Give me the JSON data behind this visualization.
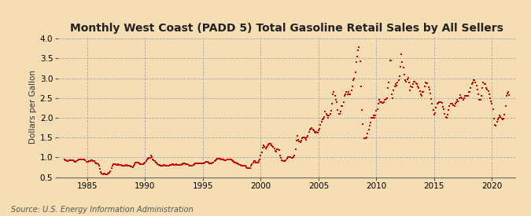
{
  "title": "Monthly West Coast (PADD 5) Total Gasoline Retail Sales by All Sellers",
  "ylabel": "Dollars per Gallon",
  "source_text": "Source: U.S. Energy Information Administration",
  "background_color": "#f5deb3",
  "plot_background_color": "#f5deb3",
  "marker_color": "#cc0000",
  "marker": "s",
  "marker_size": 2.0,
  "xlim": [
    1982.5,
    2022
  ],
  "ylim": [
    0.5,
    4.05
  ],
  "xticks": [
    1985,
    1990,
    1995,
    2000,
    2005,
    2010,
    2015,
    2020
  ],
  "yticks": [
    0.5,
    1.0,
    1.5,
    2.0,
    2.5,
    3.0,
    3.5,
    4.0
  ],
  "grid_color": "#aaaaaa",
  "grid_style": "--",
  "title_fontsize": 10,
  "label_fontsize": 7.5,
  "tick_fontsize": 7.5,
  "source_fontsize": 7,
  "data": [
    [
      1983.0,
      0.94
    ],
    [
      1983.08,
      0.93
    ],
    [
      1983.17,
      0.92
    ],
    [
      1983.25,
      0.91
    ],
    [
      1983.33,
      0.91
    ],
    [
      1983.42,
      0.92
    ],
    [
      1983.5,
      0.93
    ],
    [
      1983.58,
      0.93
    ],
    [
      1983.67,
      0.93
    ],
    [
      1983.75,
      0.92
    ],
    [
      1983.83,
      0.9
    ],
    [
      1983.92,
      0.89
    ],
    [
      1984.0,
      0.89
    ],
    [
      1984.08,
      0.91
    ],
    [
      1984.17,
      0.93
    ],
    [
      1984.25,
      0.94
    ],
    [
      1984.33,
      0.95
    ],
    [
      1984.42,
      0.95
    ],
    [
      1984.5,
      0.95
    ],
    [
      1984.58,
      0.95
    ],
    [
      1984.67,
      0.95
    ],
    [
      1984.75,
      0.94
    ],
    [
      1984.83,
      0.92
    ],
    [
      1984.92,
      0.89
    ],
    [
      1985.0,
      0.88
    ],
    [
      1985.08,
      0.89
    ],
    [
      1985.17,
      0.9
    ],
    [
      1985.25,
      0.91
    ],
    [
      1985.33,
      0.92
    ],
    [
      1985.42,
      0.92
    ],
    [
      1985.5,
      0.91
    ],
    [
      1985.58,
      0.9
    ],
    [
      1985.67,
      0.87
    ],
    [
      1985.75,
      0.85
    ],
    [
      1985.83,
      0.84
    ],
    [
      1985.92,
      0.83
    ],
    [
      1986.0,
      0.79
    ],
    [
      1986.08,
      0.71
    ],
    [
      1986.17,
      0.62
    ],
    [
      1986.25,
      0.59
    ],
    [
      1986.33,
      0.57
    ],
    [
      1986.42,
      0.58
    ],
    [
      1986.5,
      0.59
    ],
    [
      1986.58,
      0.57
    ],
    [
      1986.67,
      0.57
    ],
    [
      1986.75,
      0.58
    ],
    [
      1986.83,
      0.6
    ],
    [
      1986.92,
      0.61
    ],
    [
      1987.0,
      0.65
    ],
    [
      1987.08,
      0.72
    ],
    [
      1987.17,
      0.78
    ],
    [
      1987.25,
      0.82
    ],
    [
      1987.33,
      0.83
    ],
    [
      1987.42,
      0.82
    ],
    [
      1987.5,
      0.81
    ],
    [
      1987.58,
      0.81
    ],
    [
      1987.67,
      0.82
    ],
    [
      1987.75,
      0.81
    ],
    [
      1987.83,
      0.81
    ],
    [
      1987.92,
      0.81
    ],
    [
      1988.0,
      0.79
    ],
    [
      1988.08,
      0.78
    ],
    [
      1988.17,
      0.78
    ],
    [
      1988.25,
      0.79
    ],
    [
      1988.33,
      0.8
    ],
    [
      1988.42,
      0.8
    ],
    [
      1988.5,
      0.79
    ],
    [
      1988.58,
      0.79
    ],
    [
      1988.67,
      0.78
    ],
    [
      1988.75,
      0.77
    ],
    [
      1988.83,
      0.76
    ],
    [
      1988.92,
      0.75
    ],
    [
      1989.0,
      0.78
    ],
    [
      1989.08,
      0.82
    ],
    [
      1989.17,
      0.87
    ],
    [
      1989.25,
      0.87
    ],
    [
      1989.33,
      0.86
    ],
    [
      1989.42,
      0.86
    ],
    [
      1989.5,
      0.85
    ],
    [
      1989.58,
      0.83
    ],
    [
      1989.67,
      0.83
    ],
    [
      1989.75,
      0.82
    ],
    [
      1989.83,
      0.83
    ],
    [
      1989.92,
      0.84
    ],
    [
      1990.0,
      0.87
    ],
    [
      1990.08,
      0.9
    ],
    [
      1990.17,
      0.94
    ],
    [
      1990.25,
      0.96
    ],
    [
      1990.33,
      0.98
    ],
    [
      1990.42,
      0.99
    ],
    [
      1990.5,
      1.04
    ],
    [
      1990.58,
      1.0
    ],
    [
      1990.67,
      0.95
    ],
    [
      1990.75,
      0.93
    ],
    [
      1990.83,
      0.91
    ],
    [
      1990.92,
      0.87
    ],
    [
      1991.0,
      0.86
    ],
    [
      1991.08,
      0.83
    ],
    [
      1991.17,
      0.81
    ],
    [
      1991.25,
      0.8
    ],
    [
      1991.33,
      0.79
    ],
    [
      1991.42,
      0.79
    ],
    [
      1991.5,
      0.79
    ],
    [
      1991.58,
      0.8
    ],
    [
      1991.67,
      0.8
    ],
    [
      1991.75,
      0.79
    ],
    [
      1991.83,
      0.79
    ],
    [
      1991.92,
      0.78
    ],
    [
      1992.0,
      0.79
    ],
    [
      1992.08,
      0.79
    ],
    [
      1992.17,
      0.8
    ],
    [
      1992.25,
      0.81
    ],
    [
      1992.33,
      0.82
    ],
    [
      1992.42,
      0.82
    ],
    [
      1992.5,
      0.81
    ],
    [
      1992.58,
      0.81
    ],
    [
      1992.67,
      0.82
    ],
    [
      1992.75,
      0.81
    ],
    [
      1992.83,
      0.81
    ],
    [
      1992.92,
      0.81
    ],
    [
      1993.0,
      0.81
    ],
    [
      1993.08,
      0.81
    ],
    [
      1993.17,
      0.82
    ],
    [
      1993.25,
      0.83
    ],
    [
      1993.33,
      0.84
    ],
    [
      1993.42,
      0.84
    ],
    [
      1993.5,
      0.83
    ],
    [
      1993.58,
      0.82
    ],
    [
      1993.67,
      0.82
    ],
    [
      1993.75,
      0.8
    ],
    [
      1993.83,
      0.79
    ],
    [
      1993.92,
      0.78
    ],
    [
      1994.0,
      0.78
    ],
    [
      1994.08,
      0.79
    ],
    [
      1994.17,
      0.8
    ],
    [
      1994.25,
      0.82
    ],
    [
      1994.33,
      0.84
    ],
    [
      1994.42,
      0.84
    ],
    [
      1994.5,
      0.85
    ],
    [
      1994.58,
      0.84
    ],
    [
      1994.67,
      0.84
    ],
    [
      1994.75,
      0.84
    ],
    [
      1994.83,
      0.84
    ],
    [
      1994.92,
      0.84
    ],
    [
      1995.0,
      0.84
    ],
    [
      1995.08,
      0.84
    ],
    [
      1995.17,
      0.87
    ],
    [
      1995.25,
      0.88
    ],
    [
      1995.33,
      0.88
    ],
    [
      1995.42,
      0.88
    ],
    [
      1995.5,
      0.86
    ],
    [
      1995.58,
      0.85
    ],
    [
      1995.67,
      0.85
    ],
    [
      1995.75,
      0.85
    ],
    [
      1995.83,
      0.86
    ],
    [
      1995.92,
      0.86
    ],
    [
      1996.0,
      0.9
    ],
    [
      1996.08,
      0.93
    ],
    [
      1996.17,
      0.95
    ],
    [
      1996.25,
      0.97
    ],
    [
      1996.33,
      0.97
    ],
    [
      1996.42,
      0.97
    ],
    [
      1996.5,
      0.97
    ],
    [
      1996.58,
      0.95
    ],
    [
      1996.67,
      0.94
    ],
    [
      1996.75,
      0.94
    ],
    [
      1996.83,
      0.93
    ],
    [
      1996.92,
      0.92
    ],
    [
      1997.0,
      0.92
    ],
    [
      1997.08,
      0.94
    ],
    [
      1997.17,
      0.95
    ],
    [
      1997.25,
      0.95
    ],
    [
      1997.33,
      0.95
    ],
    [
      1997.42,
      0.95
    ],
    [
      1997.5,
      0.92
    ],
    [
      1997.58,
      0.9
    ],
    [
      1997.67,
      0.89
    ],
    [
      1997.75,
      0.87
    ],
    [
      1997.83,
      0.86
    ],
    [
      1997.92,
      0.85
    ],
    [
      1998.0,
      0.84
    ],
    [
      1998.08,
      0.82
    ],
    [
      1998.17,
      0.8
    ],
    [
      1998.25,
      0.8
    ],
    [
      1998.33,
      0.79
    ],
    [
      1998.42,
      0.79
    ],
    [
      1998.5,
      0.79
    ],
    [
      1998.58,
      0.78
    ],
    [
      1998.67,
      0.78
    ],
    [
      1998.75,
      0.75
    ],
    [
      1998.83,
      0.73
    ],
    [
      1998.92,
      0.72
    ],
    [
      1999.0,
      0.73
    ],
    [
      1999.08,
      0.73
    ],
    [
      1999.17,
      0.78
    ],
    [
      1999.25,
      0.82
    ],
    [
      1999.33,
      0.87
    ],
    [
      1999.42,
      0.9
    ],
    [
      1999.5,
      0.9
    ],
    [
      1999.58,
      0.87
    ],
    [
      1999.67,
      0.87
    ],
    [
      1999.75,
      0.87
    ],
    [
      1999.83,
      0.9
    ],
    [
      1999.92,
      0.95
    ],
    [
      2000.0,
      1.05
    ],
    [
      2000.08,
      1.12
    ],
    [
      2000.17,
      1.25
    ],
    [
      2000.25,
      1.3
    ],
    [
      2000.33,
      1.27
    ],
    [
      2000.42,
      1.22
    ],
    [
      2000.5,
      1.27
    ],
    [
      2000.58,
      1.28
    ],
    [
      2000.67,
      1.32
    ],
    [
      2000.75,
      1.35
    ],
    [
      2000.83,
      1.35
    ],
    [
      2000.92,
      1.3
    ],
    [
      2001.0,
      1.28
    ],
    [
      2001.08,
      1.27
    ],
    [
      2001.17,
      1.22
    ],
    [
      2001.25,
      1.17
    ],
    [
      2001.33,
      1.15
    ],
    [
      2001.42,
      1.2
    ],
    [
      2001.5,
      1.2
    ],
    [
      2001.58,
      1.18
    ],
    [
      2001.67,
      1.05
    ],
    [
      2001.75,
      0.98
    ],
    [
      2001.83,
      0.93
    ],
    [
      2001.92,
      0.9
    ],
    [
      2002.0,
      0.9
    ],
    [
      2002.08,
      0.9
    ],
    [
      2002.17,
      0.92
    ],
    [
      2002.25,
      0.97
    ],
    [
      2002.33,
      1.0
    ],
    [
      2002.42,
      1.0
    ],
    [
      2002.5,
      1.0
    ],
    [
      2002.58,
      1.0
    ],
    [
      2002.67,
      0.98
    ],
    [
      2002.75,
      0.98
    ],
    [
      2002.83,
      1.0
    ],
    [
      2002.92,
      1.05
    ],
    [
      2003.0,
      1.2
    ],
    [
      2003.08,
      1.42
    ],
    [
      2003.17,
      1.55
    ],
    [
      2003.25,
      1.45
    ],
    [
      2003.33,
      1.4
    ],
    [
      2003.42,
      1.38
    ],
    [
      2003.5,
      1.42
    ],
    [
      2003.58,
      1.48
    ],
    [
      2003.67,
      1.5
    ],
    [
      2003.75,
      1.5
    ],
    [
      2003.83,
      1.48
    ],
    [
      2003.92,
      1.45
    ],
    [
      2004.0,
      1.5
    ],
    [
      2004.08,
      1.55
    ],
    [
      2004.17,
      1.65
    ],
    [
      2004.25,
      1.7
    ],
    [
      2004.33,
      1.73
    ],
    [
      2004.42,
      1.75
    ],
    [
      2004.5,
      1.7
    ],
    [
      2004.58,
      1.68
    ],
    [
      2004.67,
      1.65
    ],
    [
      2004.75,
      1.62
    ],
    [
      2004.83,
      1.65
    ],
    [
      2004.92,
      1.62
    ],
    [
      2005.0,
      1.68
    ],
    [
      2005.08,
      1.72
    ],
    [
      2005.17,
      1.82
    ],
    [
      2005.25,
      1.9
    ],
    [
      2005.33,
      1.95
    ],
    [
      2005.42,
      1.97
    ],
    [
      2005.5,
      2.02
    ],
    [
      2005.58,
      2.15
    ],
    [
      2005.67,
      2.1
    ],
    [
      2005.75,
      2.05
    ],
    [
      2005.83,
      2.0
    ],
    [
      2005.92,
      2.05
    ],
    [
      2006.0,
      2.1
    ],
    [
      2006.08,
      2.18
    ],
    [
      2006.17,
      2.35
    ],
    [
      2006.25,
      2.6
    ],
    [
      2006.33,
      2.65
    ],
    [
      2006.42,
      2.55
    ],
    [
      2006.5,
      2.45
    ],
    [
      2006.58,
      2.4
    ],
    [
      2006.67,
      2.2
    ],
    [
      2006.75,
      2.1
    ],
    [
      2006.83,
      2.1
    ],
    [
      2006.92,
      2.15
    ],
    [
      2007.0,
      2.3
    ],
    [
      2007.08,
      2.3
    ],
    [
      2007.17,
      2.4
    ],
    [
      2007.25,
      2.55
    ],
    [
      2007.33,
      2.6
    ],
    [
      2007.42,
      2.65
    ],
    [
      2007.5,
      2.6
    ],
    [
      2007.58,
      2.65
    ],
    [
      2007.67,
      2.6
    ],
    [
      2007.75,
      2.6
    ],
    [
      2007.83,
      2.7
    ],
    [
      2007.92,
      2.8
    ],
    [
      2008.0,
      2.95
    ],
    [
      2008.08,
      3.0
    ],
    [
      2008.17,
      3.15
    ],
    [
      2008.25,
      3.4
    ],
    [
      2008.33,
      3.55
    ],
    [
      2008.42,
      3.7
    ],
    [
      2008.5,
      3.78
    ],
    [
      2008.58,
      3.42
    ],
    [
      2008.67,
      2.8
    ],
    [
      2008.75,
      2.2
    ],
    [
      2008.83,
      1.85
    ],
    [
      2008.92,
      1.48
    ],
    [
      2009.0,
      1.48
    ],
    [
      2009.08,
      1.48
    ],
    [
      2009.17,
      1.5
    ],
    [
      2009.25,
      1.6
    ],
    [
      2009.33,
      1.7
    ],
    [
      2009.42,
      1.8
    ],
    [
      2009.5,
      1.88
    ],
    [
      2009.58,
      2.0
    ],
    [
      2009.67,
      2.0
    ],
    [
      2009.75,
      2.05
    ],
    [
      2009.83,
      2.0
    ],
    [
      2009.92,
      2.05
    ],
    [
      2010.0,
      2.18
    ],
    [
      2010.08,
      2.22
    ],
    [
      2010.17,
      2.35
    ],
    [
      2010.25,
      2.45
    ],
    [
      2010.33,
      2.4
    ],
    [
      2010.42,
      2.4
    ],
    [
      2010.5,
      2.38
    ],
    [
      2010.58,
      2.38
    ],
    [
      2010.67,
      2.4
    ],
    [
      2010.75,
      2.45
    ],
    [
      2010.83,
      2.48
    ],
    [
      2010.92,
      2.5
    ],
    [
      2011.0,
      2.75
    ],
    [
      2011.08,
      2.9
    ],
    [
      2011.17,
      3.45
    ],
    [
      2011.25,
      3.45
    ],
    [
      2011.33,
      2.6
    ],
    [
      2011.42,
      2.5
    ],
    [
      2011.5,
      2.7
    ],
    [
      2011.58,
      2.8
    ],
    [
      2011.67,
      2.85
    ],
    [
      2011.75,
      2.82
    ],
    [
      2011.83,
      2.9
    ],
    [
      2011.92,
      2.95
    ],
    [
      2012.0,
      3.05
    ],
    [
      2012.08,
      3.3
    ],
    [
      2012.17,
      3.6
    ],
    [
      2012.25,
      3.4
    ],
    [
      2012.33,
      3.28
    ],
    [
      2012.42,
      3.1
    ],
    [
      2012.5,
      2.95
    ],
    [
      2012.58,
      2.92
    ],
    [
      2012.67,
      2.98
    ],
    [
      2012.75,
      3.02
    ],
    [
      2012.83,
      2.9
    ],
    [
      2012.92,
      2.7
    ],
    [
      2013.0,
      2.8
    ],
    [
      2013.08,
      2.78
    ],
    [
      2013.17,
      2.85
    ],
    [
      2013.25,
      2.92
    ],
    [
      2013.33,
      2.92
    ],
    [
      2013.42,
      2.88
    ],
    [
      2013.5,
      2.85
    ],
    [
      2013.58,
      2.8
    ],
    [
      2013.67,
      2.75
    ],
    [
      2013.75,
      2.68
    ],
    [
      2013.83,
      2.6
    ],
    [
      2013.92,
      2.55
    ],
    [
      2014.0,
      2.65
    ],
    [
      2014.08,
      2.65
    ],
    [
      2014.17,
      2.8
    ],
    [
      2014.25,
      2.9
    ],
    [
      2014.33,
      2.88
    ],
    [
      2014.42,
      2.88
    ],
    [
      2014.5,
      2.78
    ],
    [
      2014.58,
      2.72
    ],
    [
      2014.67,
      2.62
    ],
    [
      2014.75,
      2.48
    ],
    [
      2014.83,
      2.35
    ],
    [
      2014.92,
      2.2
    ],
    [
      2015.0,
      2.08
    ],
    [
      2015.08,
      2.12
    ],
    [
      2015.17,
      2.25
    ],
    [
      2015.25,
      2.35
    ],
    [
      2015.33,
      2.38
    ],
    [
      2015.42,
      2.4
    ],
    [
      2015.5,
      2.4
    ],
    [
      2015.58,
      2.4
    ],
    [
      2015.67,
      2.38
    ],
    [
      2015.75,
      2.28
    ],
    [
      2015.83,
      2.22
    ],
    [
      2015.92,
      2.1
    ],
    [
      2016.0,
      2.02
    ],
    [
      2016.08,
      2.0
    ],
    [
      2016.17,
      2.08
    ],
    [
      2016.25,
      2.2
    ],
    [
      2016.33,
      2.3
    ],
    [
      2016.42,
      2.35
    ],
    [
      2016.5,
      2.35
    ],
    [
      2016.58,
      2.35
    ],
    [
      2016.67,
      2.32
    ],
    [
      2016.75,
      2.3
    ],
    [
      2016.83,
      2.35
    ],
    [
      2016.92,
      2.4
    ],
    [
      2017.0,
      2.45
    ],
    [
      2017.08,
      2.42
    ],
    [
      2017.17,
      2.5
    ],
    [
      2017.25,
      2.58
    ],
    [
      2017.33,
      2.52
    ],
    [
      2017.42,
      2.5
    ],
    [
      2017.5,
      2.45
    ],
    [
      2017.58,
      2.5
    ],
    [
      2017.67,
      2.55
    ],
    [
      2017.75,
      2.55
    ],
    [
      2017.83,
      2.55
    ],
    [
      2017.92,
      2.55
    ],
    [
      2018.0,
      2.65
    ],
    [
      2018.08,
      2.65
    ],
    [
      2018.17,
      2.75
    ],
    [
      2018.25,
      2.85
    ],
    [
      2018.33,
      2.9
    ],
    [
      2018.42,
      2.95
    ],
    [
      2018.5,
      2.95
    ],
    [
      2018.58,
      2.9
    ],
    [
      2018.67,
      2.82
    ],
    [
      2018.75,
      2.72
    ],
    [
      2018.83,
      2.6
    ],
    [
      2018.92,
      2.45
    ],
    [
      2019.0,
      2.45
    ],
    [
      2019.08,
      2.55
    ],
    [
      2019.17,
      2.75
    ],
    [
      2019.25,
      2.9
    ],
    [
      2019.33,
      2.85
    ],
    [
      2019.42,
      2.85
    ],
    [
      2019.5,
      2.75
    ],
    [
      2019.58,
      2.72
    ],
    [
      2019.67,
      2.68
    ],
    [
      2019.75,
      2.6
    ],
    [
      2019.83,
      2.5
    ],
    [
      2019.92,
      2.42
    ],
    [
      2020.0,
      2.35
    ],
    [
      2020.08,
      2.22
    ],
    [
      2020.17,
      1.98
    ],
    [
      2020.25,
      1.82
    ],
    [
      2020.33,
      1.8
    ],
    [
      2020.42,
      1.9
    ],
    [
      2020.5,
      1.95
    ],
    [
      2020.58,
      2.0
    ],
    [
      2020.67,
      2.05
    ],
    [
      2020.75,
      2.02
    ],
    [
      2020.83,
      1.98
    ],
    [
      2020.92,
      1.95
    ],
    [
      2021.0,
      1.98
    ],
    [
      2021.08,
      2.08
    ],
    [
      2021.17,
      2.3
    ],
    [
      2021.25,
      2.55
    ],
    [
      2021.33,
      2.62
    ],
    [
      2021.42,
      2.65
    ],
    [
      2021.5,
      2.58
    ]
  ]
}
